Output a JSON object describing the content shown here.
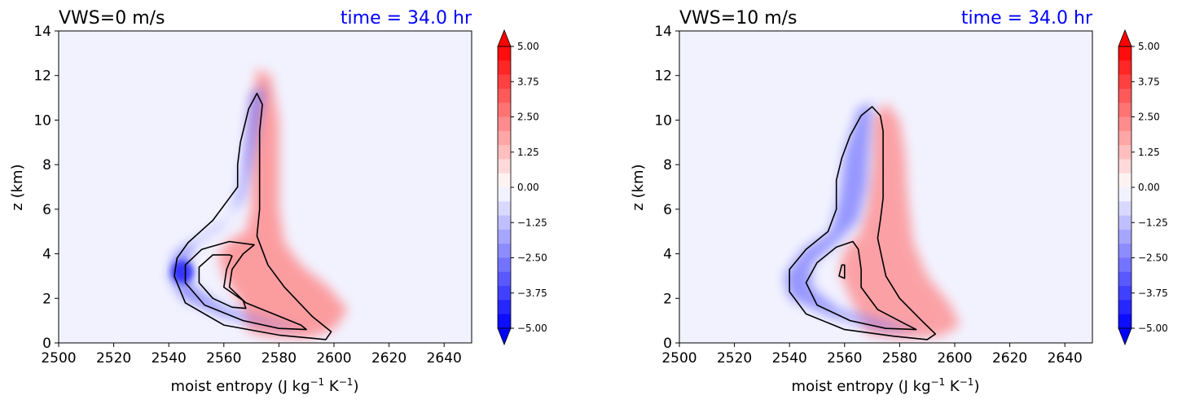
{
  "chart_data": [
    {
      "type": "contour",
      "title": "VWS=0 m/s",
      "time_label": "time = 34.0 hr",
      "xlabel": "moist entropy (J kg$^{-1}$ K$^{-1}$)",
      "ylabel": "z (km)",
      "xlim": [
        2500,
        2650
      ],
      "ylim": [
        0,
        14
      ],
      "xticks": [
        2500,
        2520,
        2540,
        2560,
        2580,
        2600,
        2620,
        2640
      ],
      "yticks": [
        0,
        2,
        4,
        6,
        8,
        10,
        12,
        14
      ],
      "grid": false,
      "colorbar": {
        "range": [
          -5,
          5
        ],
        "levels": 21,
        "extend": "both",
        "colormap": "bwr",
        "tick_labels": [
          "5.00",
          "3.75",
          "2.50",
          "1.25",
          "0.00",
          "−1.25",
          "−2.50",
          "−3.75",
          "−5.00"
        ]
      },
      "features": {
        "positive_lobe": [
          [
            2568,
            0.6
          ],
          [
            2575,
            0.3
          ],
          [
            2590,
            0.2
          ],
          [
            2600,
            0.6
          ],
          [
            2605,
            1.5
          ],
          [
            2598,
            2.5
          ],
          [
            2588,
            3.5
          ],
          [
            2582,
            4.5
          ],
          [
            2580,
            6
          ],
          [
            2580,
            8
          ],
          [
            2580,
            10
          ],
          [
            2577,
            12
          ],
          [
            2572,
            12.3
          ],
          [
            2570,
            10
          ],
          [
            2570,
            8
          ],
          [
            2570,
            6
          ],
          [
            2568,
            5
          ],
          [
            2562,
            4.6
          ],
          [
            2558,
            4
          ],
          [
            2560,
            3
          ],
          [
            2565,
            2
          ],
          [
            2568,
            1.2
          ]
        ],
        "negative_lobe": [
          [
            2590,
            0.6
          ],
          [
            2580,
            0.7
          ],
          [
            2560,
            1.2
          ],
          [
            2545,
            2
          ],
          [
            2540,
            3
          ],
          [
            2542,
            4
          ],
          [
            2552,
            4.8
          ],
          [
            2562,
            5.6
          ],
          [
            2566,
            7
          ],
          [
            2568,
            9
          ],
          [
            2570,
            11.2
          ],
          [
            2575,
            11.5
          ],
          [
            2573,
            10
          ],
          [
            2570,
            8
          ],
          [
            2567,
            6.5
          ],
          [
            2560,
            5.3
          ],
          [
            2550,
            4.5
          ],
          [
            2546,
            3.5
          ],
          [
            2549,
            2.5
          ],
          [
            2560,
            1.6
          ],
          [
            2575,
            1.0
          ]
        ],
        "contours": [
          [
            [
              2572,
              11.2
            ],
            [
              2569,
              10.5
            ],
            [
              2566,
              9
            ],
            [
              2565,
              8
            ],
            [
              2565,
              7
            ],
            [
              2562,
              6.5
            ],
            [
              2556,
              5.5
            ],
            [
              2547,
              4.5
            ],
            [
              2543,
              3.8
            ],
            [
              2542,
              3
            ],
            [
              2546,
              1.8
            ],
            [
              2560,
              0.8
            ],
            [
              2580,
              0.35
            ],
            [
              2597,
              0.15
            ],
            [
              2599,
              0.5
            ],
            [
              2592,
              1.2
            ],
            [
              2582,
              2.5
            ],
            [
              2576,
              3.5
            ],
            [
              2572,
              4.8
            ],
            [
              2573,
              6
            ],
            [
              2573,
              8
            ],
            [
              2573,
              9.5
            ],
            [
              2574,
              10.7
            ]
          ],
          [
            [
              2571,
              4.4
            ],
            [
              2562,
              4.55
            ],
            [
              2552,
              4.2
            ],
            [
              2546,
              3.5
            ],
            [
              2546,
              2.7
            ],
            [
              2553,
              1.7
            ],
            [
              2567,
              1.0
            ],
            [
              2580,
              0.65
            ],
            [
              2590,
              0.6
            ],
            [
              2588,
              0.8
            ],
            [
              2578,
              1.3
            ],
            [
              2568,
              1.8
            ],
            [
              2562,
              2.5
            ],
            [
              2563,
              3.3
            ],
            [
              2567,
              4.0
            ]
          ],
          [
            [
              2562,
              3.95
            ],
            [
              2556,
              3.95
            ],
            [
              2551,
              3.4
            ],
            [
              2551,
              2.7
            ],
            [
              2556,
              2.0
            ],
            [
              2563,
              1.6
            ],
            [
              2568,
              1.55
            ],
            [
              2567,
              1.9
            ],
            [
              2560,
              2.5
            ],
            [
              2561,
              3.3
            ],
            [
              2563,
              3.9
            ]
          ]
        ]
      }
    },
    {
      "type": "contour",
      "title": "VWS=10 m/s",
      "time_label": "time = 34.0 hr",
      "xlabel": "moist entropy (J kg$^{-1}$ K$^{-1}$)",
      "ylabel": "z (km)",
      "xlim": [
        2500,
        2650
      ],
      "ylim": [
        0,
        14
      ],
      "xticks": [
        2500,
        2520,
        2540,
        2560,
        2580,
        2600,
        2620,
        2640
      ],
      "yticks": [
        0,
        2,
        4,
        6,
        8,
        10,
        12,
        14
      ],
      "grid": false,
      "colorbar": {
        "range": [
          -5,
          5
        ],
        "levels": 21,
        "extend": "both",
        "colormap": "bwr",
        "tick_labels": [
          "5.00",
          "3.75",
          "2.50",
          "1.25",
          "0.00",
          "−1.25",
          "−2.50",
          "−3.75",
          "−5.00"
        ]
      },
      "features": {
        "positive_lobe": [
          [
            2568,
            0.4
          ],
          [
            2580,
            0.2
          ],
          [
            2595,
            0.3
          ],
          [
            2602,
            0.8
          ],
          [
            2598,
            1.8
          ],
          [
            2590,
            3
          ],
          [
            2585,
            4.5
          ],
          [
            2583,
            6.5
          ],
          [
            2582,
            8.5
          ],
          [
            2580,
            10
          ],
          [
            2575,
            10.8
          ],
          [
            2570,
            10
          ],
          [
            2570,
            8
          ],
          [
            2568,
            6
          ],
          [
            2565,
            4.8
          ],
          [
            2560,
            4.2
          ],
          [
            2558,
            3.2
          ],
          [
            2562,
            2.0
          ],
          [
            2566,
            1.0
          ]
        ],
        "negative_lobe": [
          [
            2588,
            0.5
          ],
          [
            2575,
            0.6
          ],
          [
            2555,
            1.2
          ],
          [
            2540,
            2
          ],
          [
            2538,
            3
          ],
          [
            2545,
            4.2
          ],
          [
            2555,
            5
          ],
          [
            2558,
            6.5
          ],
          [
            2560,
            8.5
          ],
          [
            2565,
            10.5
          ],
          [
            2570,
            10.8
          ],
          [
            2569,
            9
          ],
          [
            2568,
            7
          ],
          [
            2565,
            5.5
          ],
          [
            2558,
            4.6
          ],
          [
            2548,
            3.5
          ],
          [
            2548,
            2.5
          ],
          [
            2558,
            1.5
          ],
          [
            2575,
            0.9
          ]
        ],
        "contours": [
          [
            [
              2570,
              10.6
            ],
            [
              2566,
              10.2
            ],
            [
              2562,
              9.3
            ],
            [
              2559,
              8.3
            ],
            [
              2557,
              7.3
            ],
            [
              2557,
              6
            ],
            [
              2554,
              5
            ],
            [
              2546,
              4.2
            ],
            [
              2540,
              3.3
            ],
            [
              2540,
              2.3
            ],
            [
              2546,
              1.3
            ],
            [
              2560,
              0.6
            ],
            [
              2578,
              0.3
            ],
            [
              2590,
              0.15
            ],
            [
              2593,
              0.4
            ],
            [
              2588,
              1.0
            ],
            [
              2580,
              2.0
            ],
            [
              2575,
              3.0
            ],
            [
              2572,
              4.7
            ],
            [
              2573,
              5.5
            ],
            [
              2574,
              6.5
            ],
            [
              2574,
              8
            ],
            [
              2574,
              9.5
            ],
            [
              2573,
              10.2
            ]
          ],
          [
            [
              2563,
              4.55
            ],
            [
              2557,
              4.3
            ],
            [
              2550,
              3.6
            ],
            [
              2546,
              2.7
            ],
            [
              2550,
              1.7
            ],
            [
              2562,
              1.0
            ],
            [
              2575,
              0.65
            ],
            [
              2586,
              0.6
            ],
            [
              2582,
              0.85
            ],
            [
              2572,
              1.5
            ],
            [
              2566,
              2.5
            ],
            [
              2566,
              3.3
            ],
            [
              2565,
              4.2
            ]
          ],
          [
            [
              2559,
              3.5
            ],
            [
              2558,
              3.0
            ],
            [
              2560,
              2.9
            ],
            [
              2560,
              3.5
            ]
          ]
        ]
      }
    }
  ]
}
